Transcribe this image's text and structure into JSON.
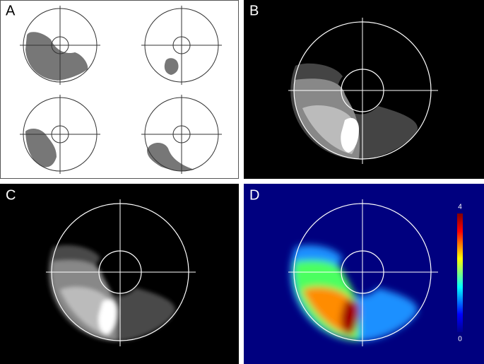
{
  "panels": [
    {
      "label": "A"
    },
    {
      "label": "B"
    },
    {
      "label": "C"
    },
    {
      "label": "D"
    }
  ],
  "colorbar": {
    "max": 4,
    "min": 0
  }
}
